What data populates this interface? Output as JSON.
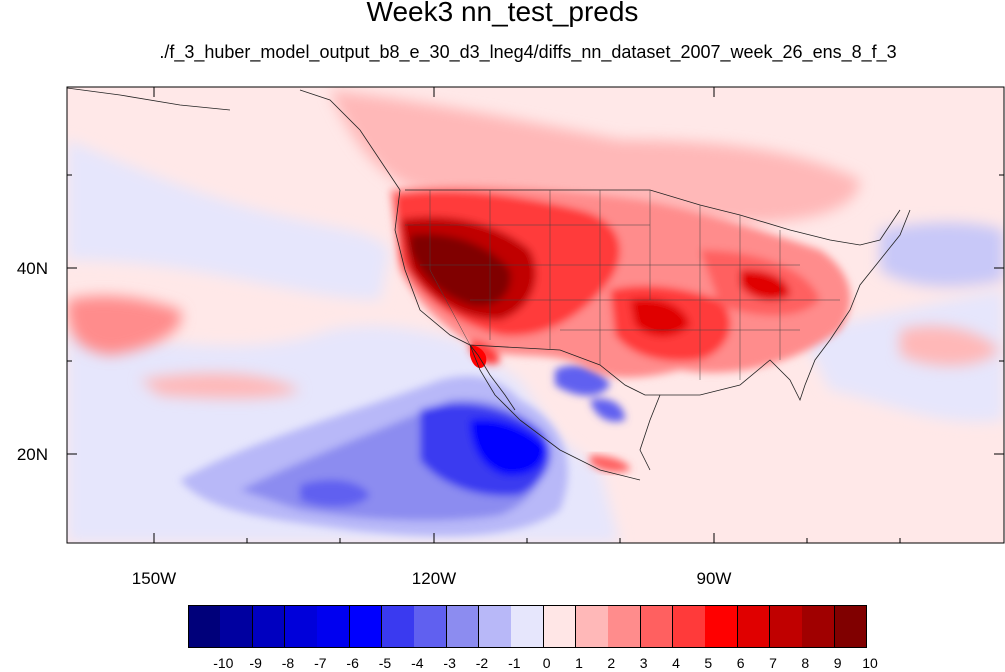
{
  "title": "Week3 nn_test_preds",
  "subtitle": "./f_3_huber_model_output_b8_e_30_d3_lneg4/diffs_nn_dataset_2007_week_26_ens_8_f_3",
  "map": {
    "lat_ticks": [
      "40N",
      "20N"
    ],
    "lon_ticks": [
      "150W",
      "120W",
      "90W"
    ],
    "lon_range": [
      -160,
      -62
    ],
    "lat_range": [
      10,
      58
    ]
  },
  "colorbar": {
    "labels": [
      "-10",
      "-9",
      "-8",
      "-7",
      "-6",
      "-5",
      "-4",
      "-3",
      "-2",
      "-1",
      "0",
      "1",
      "2",
      "3",
      "4",
      "5",
      "6",
      "7",
      "8",
      "9",
      "10"
    ],
    "colors": [
      "#00007a",
      "#0000a0",
      "#0000c0",
      "#0000da",
      "#0000f0",
      "#0000ff",
      "#3a3af0",
      "#6060f0",
      "#8c8cf0",
      "#b8b8f8",
      "#e6e6fc",
      "#ffe6e6",
      "#ffb8b8",
      "#ff8c8c",
      "#ff6060",
      "#ff3a3a",
      "#ff0000",
      "#e00000",
      "#c00000",
      "#a00000",
      "#800000"
    ]
  }
}
